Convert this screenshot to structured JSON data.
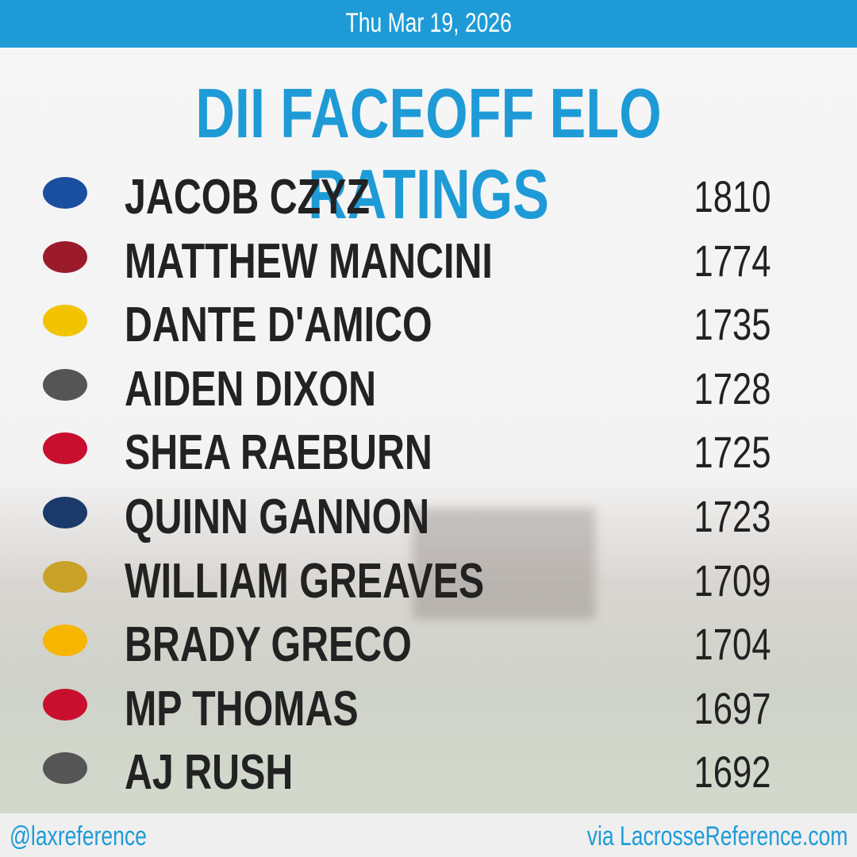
{
  "header": {
    "date": "Thu Mar 19, 2026"
  },
  "title": "DII FACEOFF ELO RATINGS",
  "rows": [
    {
      "name": "JACOB CZYZ",
      "rating": 1810
    },
    {
      "name": "MATTHEW MANCINI",
      "rating": 1774
    },
    {
      "name": "DANTE D'AMICO",
      "rating": 1735
    },
    {
      "name": "AIDEN DIXON",
      "rating": 1728
    },
    {
      "name": "SHEA RAEBURN",
      "rating": 1725
    },
    {
      "name": "QUINN GANNON",
      "rating": 1723
    },
    {
      "name": "WILLIAM GREAVES",
      "rating": 1709
    },
    {
      "name": "BRADY GRECO",
      "rating": 1704
    },
    {
      "name": "MP THOMAS",
      "rating": 1697
    },
    {
      "name": "AJ RUSH",
      "rating": 1692
    }
  ],
  "footer": {
    "handle": "@laxreference",
    "site": "via LacrosseReference.com"
  }
}
